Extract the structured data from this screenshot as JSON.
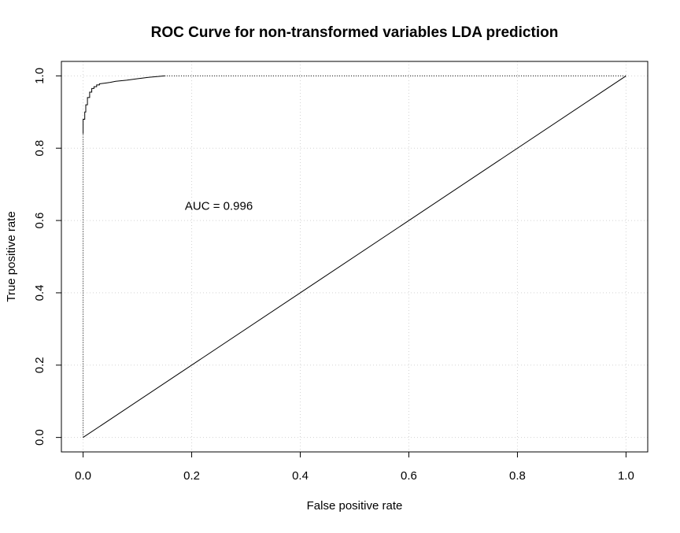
{
  "chart_data": {
    "type": "line",
    "title": "ROC Curve for non-transformed variables LDA prediction",
    "xlabel": "False positive rate",
    "ylabel": "True positive rate",
    "xlim": [
      -0.04,
      1.04
    ],
    "ylim": [
      -0.04,
      1.04
    ],
    "x_ticks": [
      "0.0",
      "0.2",
      "0.4",
      "0.6",
      "0.8",
      "1.0"
    ],
    "y_ticks": [
      "0.0",
      "0.2",
      "0.4",
      "0.6",
      "0.8",
      "1.0"
    ],
    "grid": true,
    "annotation": {
      "text": "AUC = 0.996",
      "x": 0.25,
      "y": 0.64
    },
    "series": [
      {
        "style": "solid",
        "x": [
          0.0,
          0.0,
          0.003,
          0.003,
          0.005,
          0.005,
          0.008,
          0.008,
          0.012,
          0.012,
          0.016,
          0.016,
          0.02,
          0.02,
          0.025,
          0.025,
          0.03,
          0.03,
          0.04,
          0.05,
          0.06,
          0.08,
          0.1,
          0.12,
          0.15
        ],
        "y": [
          0.84,
          0.88,
          0.88,
          0.9,
          0.9,
          0.92,
          0.92,
          0.94,
          0.94,
          0.955,
          0.955,
          0.965,
          0.965,
          0.97,
          0.97,
          0.975,
          0.975,
          0.978,
          0.98,
          0.982,
          0.985,
          0.988,
          0.992,
          0.996,
          1.0
        ]
      },
      {
        "style": "dotted",
        "x": [
          0.0,
          0.0
        ],
        "y": [
          0.0,
          0.84
        ]
      },
      {
        "style": "dotted",
        "x": [
          0.15,
          1.0
        ],
        "y": [
          1.0,
          1.0
        ]
      },
      {
        "style": "solid",
        "x": [
          0.0,
          1.0
        ],
        "y": [
          0.0,
          1.0
        ]
      }
    ]
  }
}
